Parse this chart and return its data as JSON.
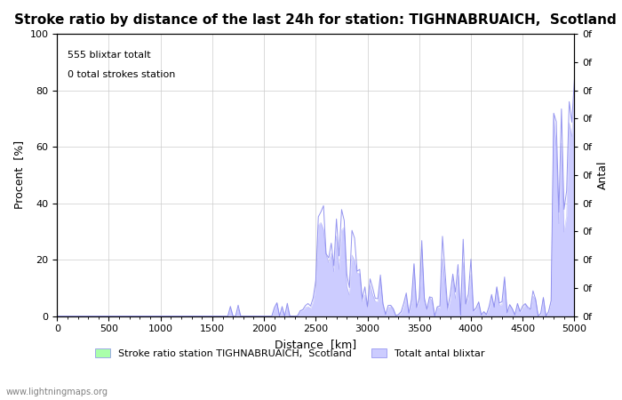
{
  "title": "Stroke ratio by distance of the last 24h for station: TIGHNABRUAICH,  Scotland",
  "xlabel": "Distance  [km]",
  "ylabel_left": "Procent  [%]",
  "ylabel_right": "Antal",
  "annotation_line1": "555 blixtar totalt",
  "annotation_line2": "0 total strokes station",
  "legend_label1": "Stroke ratio station TIGHNABRUAICH,  Scotland",
  "legend_label2": "Totalt antal blixtar",
  "watermark": "www.lightningmaps.org",
  "xlim": [
    0,
    5000
  ],
  "ylim": [
    0,
    100
  ],
  "right_ylim": [
    0,
    0
  ],
  "right_ytick_labels": [
    "0f",
    "0f",
    "0f",
    "0f",
    "0f",
    "0f",
    "0f",
    "0f",
    "0f",
    "0f",
    "0f"
  ],
  "line_color": "#8888ee",
  "fill_color_stroke": "#aaffaa",
  "fill_color_total": "#ccccff",
  "background_color": "#ffffff",
  "grid_color": "#cccccc",
  "title_fontsize": 11,
  "label_fontsize": 9,
  "tick_fontsize": 8,
  "seed": 42
}
